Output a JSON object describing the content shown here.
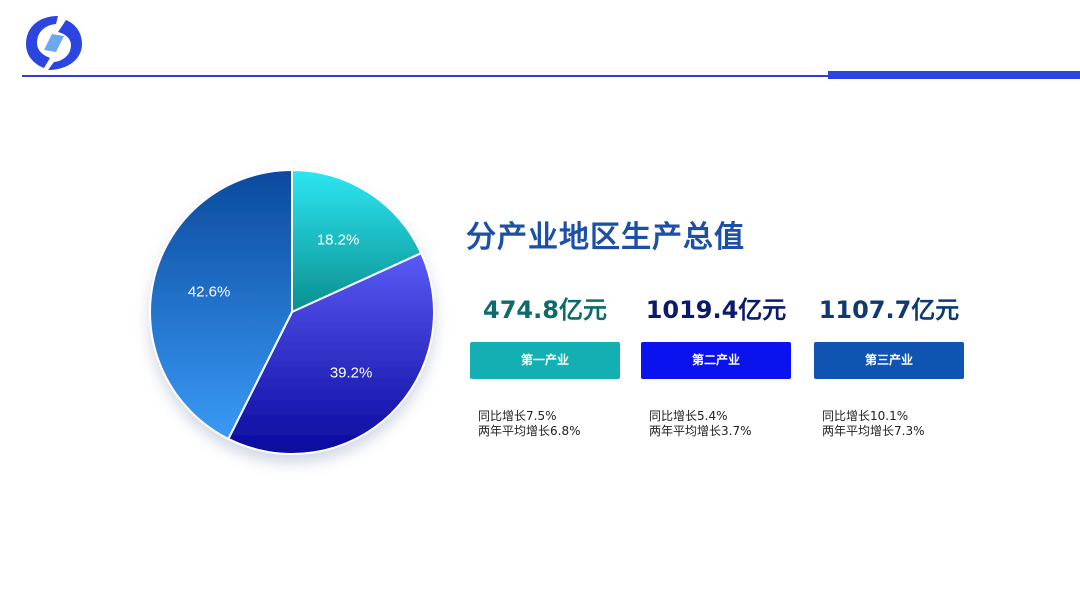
{
  "theme": {
    "rule_color": "#2b45e0",
    "title_color": "#1c4fa6"
  },
  "header": {
    "logo_icon": "china-statistics-logo-icon"
  },
  "title": "分产业地区生产总值",
  "chart_data": {
    "type": "pie",
    "slices": [
      {
        "label": "18.2%",
        "value": 18.2,
        "color_top": "#2ee6f2",
        "color_bottom": "#0a8f8f"
      },
      {
        "label": "39.2%",
        "value": 39.2,
        "color_top": "#5a5af5",
        "color_bottom": "#0a0a9e"
      },
      {
        "label": "42.6%",
        "value": 42.6,
        "color_top": "#0a4a9e",
        "color_bottom": "#3a9af5"
      }
    ],
    "start": "top",
    "direction": "clockwise",
    "legend": "none"
  },
  "industries": [
    {
      "value": "474.8亿元",
      "name": "第一产业",
      "growth_yoy": "同比增长7.5%",
      "growth_avg2y": "两年平均增长6.8%",
      "value_color": "#0e6b6b",
      "badge_color": "#12b0b3"
    },
    {
      "value": "1019.4亿元",
      "name": "第二产业",
      "growth_yoy": "同比增长5.4%",
      "growth_avg2y": "两年平均增长3.7%",
      "value_color": "#0c1a6e",
      "badge_color": "#0a12f0"
    },
    {
      "value": "1107.7亿元",
      "name": "第三产业",
      "growth_yoy": "同比增长10.1%",
      "growth_avg2y": "两年平均增长7.3%",
      "value_color": "#0d3a72",
      "badge_color": "#0e54b0"
    }
  ]
}
